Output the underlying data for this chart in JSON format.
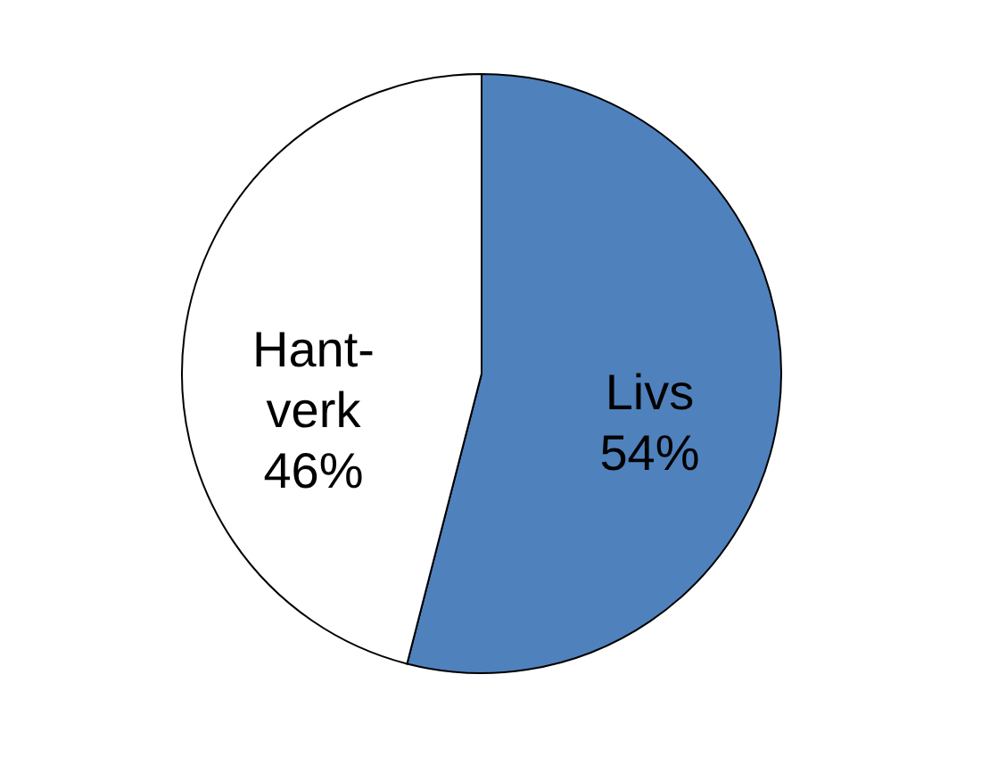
{
  "chart_data": {
    "type": "pie",
    "categories": [
      "Livs",
      "Hant-\nverk"
    ],
    "values": [
      54,
      46
    ],
    "colors": [
      "#4f81bd",
      "#ffffff"
    ],
    "value_labels": [
      "54%",
      "46%"
    ],
    "legend": false
  }
}
